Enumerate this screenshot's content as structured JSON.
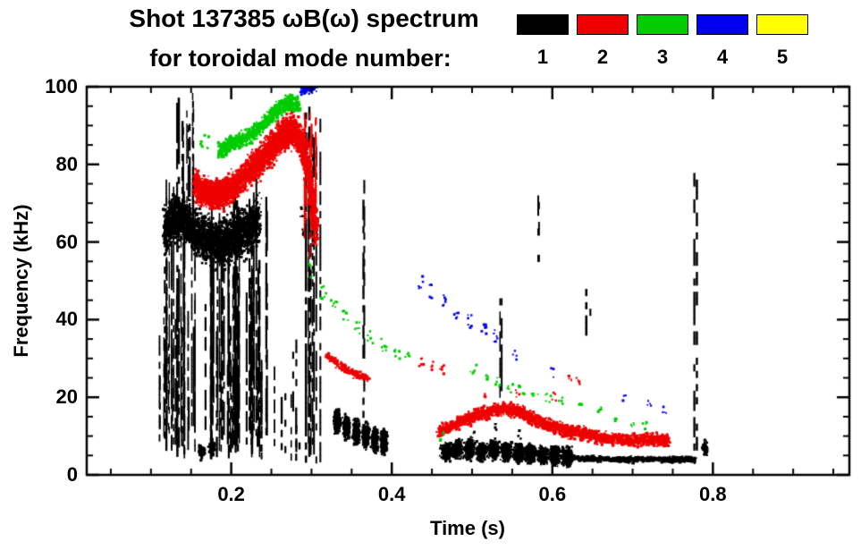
{
  "header": {
    "line1": "Shot 137385 ωB(ω) spectrum",
    "line2": "for toroidal mode number:"
  },
  "chart_data": {
    "type": "scatter",
    "title": "Shot 137385 ωB(ω) spectrum for toroidal mode number: 1 2 3 4 5",
    "xlabel": "Time (s)",
    "ylabel": "Frequency (kHz)",
    "xlim": [
      0.02,
      0.97
    ],
    "ylim": [
      0,
      100
    ],
    "grid": false,
    "legend_position": "top-right",
    "xtick_vals": [
      0.2,
      0.4,
      0.6,
      0.8
    ],
    "xtick_labels": [
      "0.2",
      "0.4",
      "0.6",
      "0.8"
    ],
    "ytick_vals": [
      0,
      20,
      40,
      60,
      80,
      100
    ],
    "ytick_labels": [
      "0",
      "20",
      "40",
      "60",
      "80",
      "100"
    ],
    "x_minor_step": 0.05,
    "y_minor_step": 5,
    "legend": [
      {
        "label": "1",
        "color": "#000000"
      },
      {
        "label": "2",
        "color": "#ee0000"
      },
      {
        "label": "3",
        "color": "#00cc00"
      },
      {
        "label": "4",
        "color": "#0000ee"
      },
      {
        "label": "5",
        "color": "#ffff00"
      }
    ],
    "series": [
      {
        "name": "n=1",
        "color": "#000000",
        "clusters": [
          {
            "type": "streaks",
            "t": [
              0.108,
              0.245
            ],
            "f": [
              4,
              78
            ],
            "count": 80,
            "gap": 0.3,
            "lowvar": 9,
            "hifrac": [
              0.25,
              1.0
            ]
          },
          {
            "type": "band",
            "path": [
              [
                0.118,
                63
              ],
              [
                0.13,
                66
              ],
              [
                0.145,
                65
              ],
              [
                0.16,
                62
              ],
              [
                0.175,
                60
              ],
              [
                0.19,
                60
              ],
              [
                0.205,
                61
              ],
              [
                0.22,
                63
              ],
              [
                0.235,
                66
              ]
            ],
            "hw": 8,
            "n": 2600,
            "s": 2.2
          },
          {
            "type": "streaks",
            "t": [
              0.132,
              0.153
            ],
            "f": [
              60,
              100
            ],
            "count": 10,
            "gap": 0.3,
            "lowvar": 10,
            "hifrac": [
              0.7,
              1.0
            ]
          },
          {
            "type": "streaks",
            "t": [
              0.24,
              0.3
            ],
            "f": [
              3,
              38
            ],
            "count": 8,
            "gap": 0.55,
            "lowvar": 5,
            "hifrac": [
              0.4,
              1.0
            ]
          },
          {
            "type": "streaks",
            "t": [
              0.292,
              0.312
            ],
            "f": [
              2,
              100
            ],
            "count": 8,
            "gap": 0.3,
            "lowvar": 6,
            "hifrac": [
              0.6,
              1.0
            ]
          },
          {
            "type": "blobs",
            "centers": [
              [
                0.332,
                14
              ],
              [
                0.344,
                12.5
              ],
              [
                0.356,
                11
              ],
              [
                0.368,
                10
              ],
              [
                0.379,
                9.2
              ],
              [
                0.39,
                8.6
              ]
            ],
            "rt": 0.0055,
            "rf": 4,
            "n": 240
          },
          {
            "type": "streaks",
            "t": [
              0.36,
              0.366
            ],
            "f": [
              8,
              76
            ],
            "count": 2,
            "gap": 0.5,
            "lowvar": 0,
            "hifrac": [
              0.9,
              1.0
            ]
          },
          {
            "type": "blobs",
            "centers": [
              [
                0.468,
                6
              ],
              [
                0.482,
                6.5
              ],
              [
                0.497,
                6.5
              ],
              [
                0.512,
                6
              ],
              [
                0.527,
                6.5
              ],
              [
                0.543,
                6
              ],
              [
                0.558,
                5.5
              ],
              [
                0.573,
                5.5
              ],
              [
                0.588,
                5
              ],
              [
                0.603,
                5
              ],
              [
                0.618,
                4.6
              ]
            ],
            "rt": 0.009,
            "rf": 3.2,
            "n": 230
          },
          {
            "type": "band",
            "path": [
              [
                0.625,
                4.3
              ],
              [
                0.66,
                4
              ],
              [
                0.7,
                4
              ],
              [
                0.74,
                4
              ],
              [
                0.778,
                4
              ]
            ],
            "hw": 1.0,
            "n": 520,
            "s": 2.3
          },
          {
            "type": "blobs",
            "centers": [
              [
                0.79,
                7
              ]
            ],
            "rt": 0.004,
            "rf": 2.4,
            "n": 70
          },
          {
            "type": "blobs",
            "centers": [
              [
                0.163,
                6
              ],
              [
                0.176,
                7
              ]
            ],
            "rt": 0.005,
            "rf": 2.4,
            "n": 80
          },
          {
            "type": "streaks",
            "t": [
              0.533,
              0.539
            ],
            "f": [
              20,
              47
            ],
            "count": 2,
            "gap": 0.45,
            "lowvar": 0,
            "hifrac": [
              0.9,
              1.0
            ]
          },
          {
            "type": "streaks",
            "t": [
              0.578,
              0.585
            ],
            "f": [
              55,
              72
            ],
            "count": 2,
            "gap": 0.45,
            "lowvar": 0,
            "hifrac": [
              0.9,
              1.0
            ]
          },
          {
            "type": "streaks",
            "t": [
              0.642,
              0.649
            ],
            "f": [
              36,
              47
            ],
            "count": 2,
            "gap": 0.45,
            "lowvar": 0,
            "hifrac": [
              0.9,
              1.0
            ]
          },
          {
            "type": "streaks",
            "t": [
              0.775,
              0.781
            ],
            "f": [
              3,
              86
            ],
            "count": 2,
            "gap": 0.55,
            "lowvar": 0,
            "hifrac": [
              0.9,
              1.0
            ]
          },
          {
            "type": "dots",
            "pts": [
              [
                0.288,
                68
              ],
              [
                0.291,
                62
              ],
              [
                0.5,
                11
              ],
              [
                0.53,
                12
              ],
              [
                0.56,
                10
              ]
            ],
            "n": 4,
            "jt": 0.003,
            "jf": 1.5,
            "s": 2
          }
        ]
      },
      {
        "name": "n=2",
        "color": "#ee0000",
        "clusters": [
          {
            "type": "band",
            "path": [
              [
                0.155,
                75
              ],
              [
                0.165,
                73
              ],
              [
                0.178,
                72
              ],
              [
                0.192,
                73
              ],
              [
                0.207,
                75
              ],
              [
                0.222,
                78
              ],
              [
                0.237,
                81
              ],
              [
                0.25,
                84
              ],
              [
                0.262,
                87
              ],
              [
                0.272,
                89
              ],
              [
                0.282,
                88
              ],
              [
                0.292,
                83
              ],
              [
                0.3,
                73
              ],
              [
                0.306,
                62
              ]
            ],
            "hw": 5.5,
            "n": 3200,
            "s": 2.2
          },
          {
            "type": "streaks",
            "t": [
              0.29,
              0.307
            ],
            "f": [
              55,
              93
            ],
            "count": 7,
            "gap": 0.3,
            "lowvar": 10,
            "hifrac": [
              0.85,
              1.0
            ]
          },
          {
            "type": "band",
            "path": [
              [
                0.318,
                31
              ],
              [
                0.33,
                29
              ],
              [
                0.345,
                27
              ],
              [
                0.358,
                25.5
              ],
              [
                0.37,
                25
              ]
            ],
            "hw": 1.3,
            "n": 210,
            "s": 2
          },
          {
            "type": "dots",
            "pts": [
              [
                0.437,
                29
              ],
              [
                0.45,
                28
              ],
              [
                0.462,
                27
              ]
            ],
            "n": 5,
            "jt": 0.003,
            "jf": 1.2,
            "s": 2
          },
          {
            "type": "band",
            "path": [
              [
                0.458,
                11
              ],
              [
                0.472,
                12.5
              ],
              [
                0.49,
                14
              ],
              [
                0.508,
                15.5
              ],
              [
                0.525,
                16.5
              ],
              [
                0.54,
                17
              ],
              [
                0.555,
                16.5
              ],
              [
                0.57,
                15
              ],
              [
                0.585,
                13.5
              ],
              [
                0.6,
                12.5
              ],
              [
                0.615,
                11.5
              ],
              [
                0.63,
                11
              ],
              [
                0.65,
                10
              ],
              [
                0.67,
                9.5
              ],
              [
                0.69,
                9
              ],
              [
                0.71,
                9
              ],
              [
                0.73,
                9
              ],
              [
                0.745,
                9
              ]
            ],
            "hw": 2.3,
            "n": 2000,
            "s": 2.2
          },
          {
            "type": "dots",
            "pts": [
              [
                0.515,
                20
              ],
              [
                0.557,
                21
              ],
              [
                0.602,
                20
              ],
              [
                0.623,
                25
              ],
              [
                0.633,
                24
              ]
            ],
            "n": 4,
            "jt": 0.003,
            "jf": 1.2,
            "s": 2
          }
        ]
      },
      {
        "name": "n=3",
        "color": "#00cc00",
        "clusters": [
          {
            "type": "band",
            "path": [
              [
                0.185,
                83
              ],
              [
                0.198,
                85
              ],
              [
                0.212,
                86
              ],
              [
                0.226,
                88
              ],
              [
                0.24,
                90
              ],
              [
                0.253,
                93
              ],
              [
                0.264,
                95
              ],
              [
                0.274,
                96
              ],
              [
                0.284,
                95
              ]
            ],
            "hw": 2.8,
            "n": 850,
            "s": 2.2
          },
          {
            "type": "dots",
            "pts": [
              [
                0.162,
                84
              ],
              [
                0.17,
                86
              ]
            ],
            "n": 5,
            "jt": 0.003,
            "jf": 2,
            "s": 2
          },
          {
            "type": "dots",
            "pts": [
              [
                0.315,
                47
              ],
              [
                0.328,
                44
              ],
              [
                0.343,
                41
              ],
              [
                0.358,
                38
              ],
              [
                0.373,
                35.5
              ],
              [
                0.39,
                33.5
              ],
              [
                0.406,
                31.5
              ],
              [
                0.42,
                30
              ]
            ],
            "n": 6,
            "jt": 0.004,
            "jf": 1.6,
            "s": 2
          },
          {
            "type": "dots",
            "pts": [
              [
                0.502,
                27
              ],
              [
                0.517,
                25.5
              ],
              [
                0.532,
                24
              ],
              [
                0.547,
                22.5
              ],
              [
                0.562,
                22
              ],
              [
                0.578,
                21
              ],
              [
                0.595,
                20
              ]
            ],
            "n": 5,
            "jt": 0.004,
            "jf": 1.3,
            "s": 2
          },
          {
            "type": "dots",
            "pts": [
              [
                0.462,
                10
              ],
              [
                0.61,
                19
              ],
              [
                0.635,
                18
              ],
              [
                0.66,
                17
              ],
              [
                0.68,
                15
              ],
              [
                0.7,
                13.5
              ],
              [
                0.715,
                13
              ]
            ],
            "n": 4,
            "jt": 0.003,
            "jf": 1.2,
            "s": 2
          },
          {
            "type": "dots",
            "pts": [
              [
                0.297,
                55
              ],
              [
                0.301,
                52
              ]
            ],
            "n": 3,
            "jt": 0.002,
            "jf": 1.5,
            "s": 2
          }
        ]
      },
      {
        "name": "n=4",
        "color": "#0000ee",
        "clusters": [
          {
            "type": "band",
            "path": [
              [
                0.288,
                99
              ],
              [
                0.296,
                100
              ],
              [
                0.304,
                100
              ]
            ],
            "hw": 2,
            "n": 130,
            "s": 2.2
          },
          {
            "type": "dots",
            "pts": [
              [
                0.436,
                50
              ],
              [
                0.45,
                47
              ],
              [
                0.465,
                44.5
              ],
              [
                0.48,
                42
              ],
              [
                0.497,
                39.5
              ],
              [
                0.515,
                37
              ],
              [
                0.53,
                35.5
              ]
            ],
            "n": 6,
            "jt": 0.003,
            "jf": 2,
            "s": 2
          },
          {
            "type": "dots",
            "pts": [
              [
                0.553,
                31
              ],
              [
                0.6,
                26
              ],
              [
                0.69,
                20
              ],
              [
                0.72,
                18
              ],
              [
                0.74,
                17
              ]
            ],
            "n": 4,
            "jt": 0.003,
            "jf": 1.5,
            "s": 2
          }
        ]
      },
      {
        "name": "n=5",
        "color": "#ffff00",
        "clusters": []
      }
    ]
  }
}
